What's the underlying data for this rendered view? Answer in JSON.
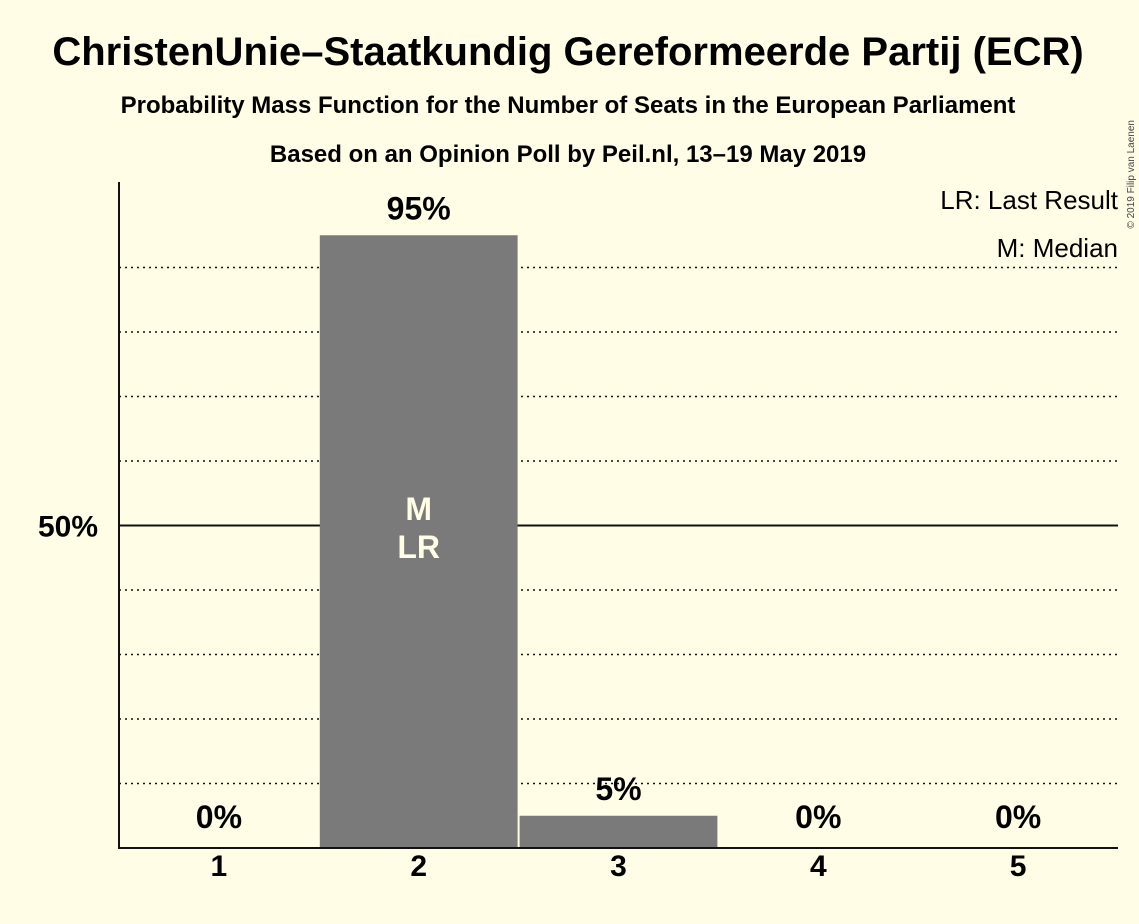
{
  "chart_data": {
    "type": "bar",
    "title": "ChristenUnie–Staatkundig Gereformeerde Partij (ECR)",
    "subtitle": "Probability Mass Function for the Number of Seats in the European Parliament",
    "subtitle2": "Based on an Opinion Poll by Peil.nl, 13–19 May 2019",
    "copyright": "© 2019 Filip van Laenen",
    "legend": [
      "LR: Last Result",
      "M: Median"
    ],
    "legend_position": "top-right",
    "categories": [
      "1",
      "2",
      "3",
      "4",
      "5"
    ],
    "values": [
      0,
      95,
      5,
      0,
      0
    ],
    "labels": [
      "0%",
      "95%",
      "5%",
      "0%",
      "0%"
    ],
    "bar_annotations": {
      "1": [
        "M",
        "LR"
      ]
    },
    "yticks": [
      {
        "value": 50,
        "label": "50%"
      }
    ],
    "ylim": [
      0,
      100
    ],
    "gridlines": [
      10,
      20,
      30,
      40,
      60,
      70,
      80,
      90
    ],
    "colors": {
      "bar": "#7A7A7A",
      "background": "#FFFDE6",
      "text": "#111111"
    }
  }
}
